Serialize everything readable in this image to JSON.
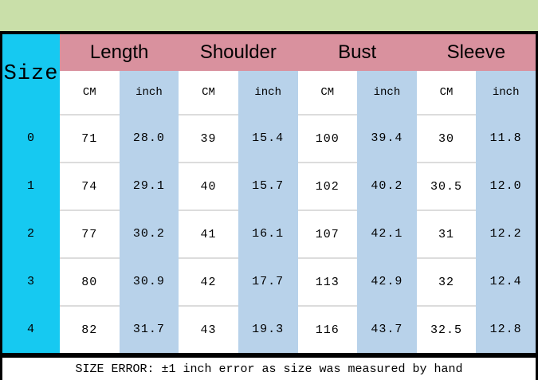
{
  "chart_data": {
    "type": "table",
    "title": "Size",
    "column_groups": [
      "Length",
      "Shoulder",
      "Bust",
      "Sleeve"
    ],
    "unit_row": [
      "CM",
      "inch",
      "CM",
      "inch",
      "CM",
      "inch",
      "CM",
      "inch"
    ],
    "columns": [
      "Size",
      "Length CM",
      "Length inch",
      "Shoulder CM",
      "Shoulder inch",
      "Bust CM",
      "Bust inch",
      "Sleeve CM",
      "Sleeve inch"
    ],
    "rows": [
      [
        "0",
        "71",
        "28.0",
        "39",
        "15.4",
        "100",
        "39.4",
        "30",
        "11.8"
      ],
      [
        "1",
        "74",
        "29.1",
        "40",
        "15.7",
        "102",
        "40.2",
        "30.5",
        "12.0"
      ],
      [
        "2",
        "77",
        "30.2",
        "41",
        "16.1",
        "107",
        "42.1",
        "31",
        "12.2"
      ],
      [
        "3",
        "80",
        "30.9",
        "42",
        "17.7",
        "113",
        "42.9",
        "32",
        "12.4"
      ],
      [
        "4",
        "82",
        "31.7",
        "43",
        "19.3",
        "116",
        "43.7",
        "32.5",
        "12.8"
      ]
    ],
    "note": "SIZE ERROR: ±1 inch error as size was measured by hand",
    "layout_hints": {
      "grid": "off",
      "header_position": "top",
      "size_column_position": "left"
    }
  },
  "colors": {
    "page_background": "#c9dfa9",
    "header_pink": "#d9919e",
    "size_cyan": "#16c9f1",
    "inch_blue": "#b8d2ea",
    "cell_white": "#ffffff",
    "row_separator": "#dcdcdc",
    "border_black": "#000000",
    "footer_background": "#ffffff"
  }
}
